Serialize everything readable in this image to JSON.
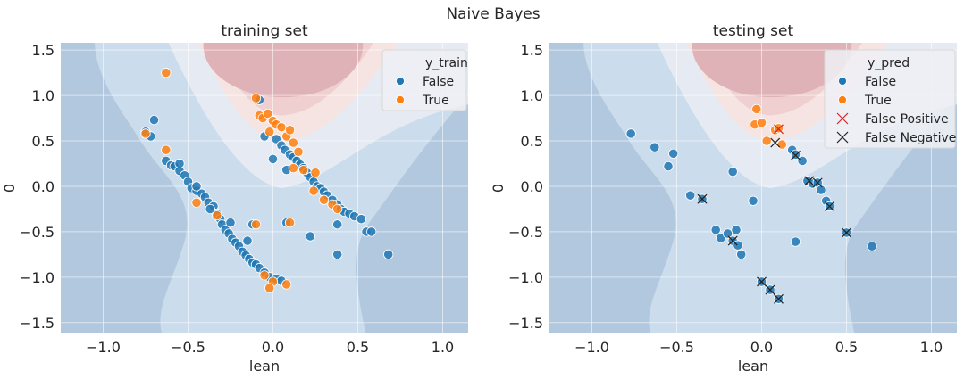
{
  "figure_title": "Naive Bayes",
  "colors": {
    "false_point": "#1f77b4",
    "true_point": "#ff7f0e",
    "false_positive_marker": "#d62728",
    "false_negative_marker": "#222222",
    "region_low": "#b2c8df",
    "region_mid": "#cbdcec",
    "region_neutral": "#e6ebf3",
    "region_warm": "#f5e4e1",
    "region_pink": "#efcfcf",
    "region_high": "#dfb2b7"
  },
  "chart_data": [
    {
      "type": "scatter",
      "title": "training set",
      "xlabel": "lean",
      "ylabel": "0",
      "xlim": [
        -1.25,
        1.15
      ],
      "ylim": [
        -1.62,
        1.58
      ],
      "xticks": [
        "−1.0",
        "−0.5",
        "0.0",
        "0.5",
        "1.0"
      ],
      "xtick_values": [
        -1.0,
        -0.5,
        0.0,
        0.5,
        1.0
      ],
      "yticks": [
        "1.5",
        "1.0",
        "0.5",
        "0.0",
        "−0.5",
        "−1.0",
        "−1.5"
      ],
      "ytick_values": [
        1.5,
        1.0,
        0.5,
        0.0,
        -0.5,
        -1.0,
        -1.5
      ],
      "grid": true,
      "background": "decision-boundary contours",
      "legend": {
        "title": "y_train",
        "placement": "top-right",
        "entries": [
          {
            "label": "False",
            "marker": "circle",
            "color": "#1f77b4"
          },
          {
            "label": "True",
            "marker": "circle",
            "color": "#ff7f0e"
          }
        ]
      },
      "series": [
        {
          "name": "False",
          "points": [
            [
              -0.75,
              0.6
            ],
            [
              -0.72,
              0.55
            ],
            [
              -0.7,
              0.73
            ],
            [
              -0.63,
              0.28
            ],
            [
              -0.6,
              0.23
            ],
            [
              -0.58,
              0.22
            ],
            [
              -0.55,
              0.17
            ],
            [
              -0.52,
              0.12
            ],
            [
              -0.5,
              0.05
            ],
            [
              -0.48,
              -0.02
            ],
            [
              -0.45,
              -0.05
            ],
            [
              -0.42,
              -0.08
            ],
            [
              -0.4,
              -0.12
            ],
            [
              -0.38,
              -0.18
            ],
            [
              -0.35,
              -0.22
            ],
            [
              -0.33,
              -0.3
            ],
            [
              -0.31,
              -0.36
            ],
            [
              -0.3,
              -0.42
            ],
            [
              -0.28,
              -0.48
            ],
            [
              -0.26,
              -0.52
            ],
            [
              -0.24,
              -0.58
            ],
            [
              -0.22,
              -0.62
            ],
            [
              -0.2,
              -0.66
            ],
            [
              -0.18,
              -0.72
            ],
            [
              -0.16,
              -0.76
            ],
            [
              -0.14,
              -0.8
            ],
            [
              -0.12,
              -0.84
            ],
            [
              -0.1,
              -0.86
            ],
            [
              -0.08,
              -0.9
            ],
            [
              -0.05,
              -0.95
            ],
            [
              -0.02,
              -1.0
            ],
            [
              0.02,
              -1.02
            ],
            [
              0.05,
              -1.04
            ],
            [
              -0.55,
              0.25
            ],
            [
              -0.45,
              0.0
            ],
            [
              -0.37,
              -0.25
            ],
            [
              -0.25,
              -0.4
            ],
            [
              -0.15,
              -0.6
            ],
            [
              -0.05,
              0.55
            ],
            [
              0.0,
              0.3
            ],
            [
              0.02,
              0.52
            ],
            [
              0.05,
              0.45
            ],
            [
              0.07,
              0.4
            ],
            [
              0.1,
              0.35
            ],
            [
              0.12,
              0.32
            ],
            [
              0.14,
              0.28
            ],
            [
              0.16,
              0.24
            ],
            [
              0.18,
              0.2
            ],
            [
              0.2,
              0.15
            ],
            [
              0.22,
              0.1
            ],
            [
              0.24,
              0.05
            ],
            [
              0.26,
              0.0
            ],
            [
              0.28,
              -0.02
            ],
            [
              0.3,
              -0.06
            ],
            [
              0.32,
              -0.1
            ],
            [
              0.35,
              -0.15
            ],
            [
              0.38,
              -0.2
            ],
            [
              0.4,
              -0.25
            ],
            [
              0.42,
              -0.28
            ],
            [
              0.45,
              -0.3
            ],
            [
              0.48,
              -0.33
            ],
            [
              0.52,
              -0.36
            ],
            [
              0.55,
              -0.5
            ],
            [
              0.58,
              -0.5
            ],
            [
              0.68,
              -0.75
            ],
            [
              0.38,
              -0.75
            ],
            [
              0.38,
              -0.42
            ],
            [
              0.22,
              -0.55
            ],
            [
              0.08,
              -0.4
            ],
            [
              0.08,
              0.18
            ],
            [
              -0.12,
              -0.42
            ],
            [
              -0.08,
              0.95
            ]
          ]
        },
        {
          "name": "True",
          "points": [
            [
              -0.63,
              1.25
            ],
            [
              -0.75,
              0.58
            ],
            [
              -0.63,
              0.4
            ],
            [
              -0.45,
              -0.18
            ],
            [
              -0.33,
              -0.32
            ],
            [
              -0.1,
              0.97
            ],
            [
              -0.08,
              0.78
            ],
            [
              -0.06,
              0.75
            ],
            [
              -0.03,
              0.8
            ],
            [
              0.0,
              0.72
            ],
            [
              0.02,
              0.68
            ],
            [
              0.05,
              0.65
            ],
            [
              -0.02,
              0.6
            ],
            [
              0.08,
              0.55
            ],
            [
              0.12,
              0.48
            ],
            [
              0.15,
              0.38
            ],
            [
              0.12,
              0.2
            ],
            [
              0.18,
              0.18
            ],
            [
              0.25,
              0.15
            ],
            [
              0.24,
              -0.05
            ],
            [
              0.3,
              -0.15
            ],
            [
              0.35,
              -0.2
            ],
            [
              0.38,
              -0.25
            ],
            [
              0.1,
              -0.4
            ],
            [
              -0.1,
              -0.42
            ],
            [
              -0.05,
              -0.98
            ],
            [
              0.0,
              -1.05
            ],
            [
              -0.02,
              -1.12
            ],
            [
              0.08,
              -1.08
            ],
            [
              0.1,
              0.62
            ]
          ]
        }
      ]
    },
    {
      "type": "scatter",
      "title": "testing set",
      "xlabel": "lean",
      "ylabel": "0",
      "xlim": [
        -1.25,
        1.15
      ],
      "ylim": [
        -1.62,
        1.58
      ],
      "xticks": [
        "−1.0",
        "−0.5",
        "0.0",
        "0.5",
        "1.0"
      ],
      "xtick_values": [
        -1.0,
        -0.5,
        0.0,
        0.5,
        1.0
      ],
      "yticks": [
        "1.5",
        "1.0",
        "0.5",
        "0.0",
        "−0.5",
        "−1.0",
        "−1.5"
      ],
      "ytick_values": [
        1.5,
        1.0,
        0.5,
        0.0,
        -0.5,
        -1.0,
        -1.5
      ],
      "grid": true,
      "background": "decision-boundary contours",
      "legend": {
        "title": "y_pred",
        "placement": "top-right",
        "entries": [
          {
            "label": "False",
            "marker": "circle",
            "color": "#1f77b4"
          },
          {
            "label": "True",
            "marker": "circle",
            "color": "#ff7f0e"
          },
          {
            "label": "False Positive",
            "marker": "x",
            "color": "#d62728"
          },
          {
            "label": "False Negative",
            "marker": "x",
            "color": "#222222"
          }
        ]
      },
      "series": [
        {
          "name": "False",
          "points": [
            [
              -0.77,
              0.58
            ],
            [
              -0.63,
              0.43
            ],
            [
              -0.55,
              0.22
            ],
            [
              -0.52,
              0.36
            ],
            [
              -0.42,
              -0.1
            ],
            [
              -0.35,
              -0.14
            ],
            [
              -0.17,
              0.16
            ],
            [
              -0.05,
              -0.16
            ],
            [
              -0.27,
              -0.48
            ],
            [
              -0.24,
              -0.57
            ],
            [
              -0.2,
              -0.52
            ],
            [
              -0.17,
              -0.6
            ],
            [
              -0.15,
              -0.48
            ],
            [
              -0.14,
              -0.65
            ],
            [
              -0.12,
              -0.75
            ],
            [
              0.0,
              -1.05
            ],
            [
              0.05,
              -1.14
            ],
            [
              0.1,
              -1.24
            ],
            [
              0.18,
              0.4
            ],
            [
              0.2,
              0.35
            ],
            [
              0.24,
              0.28
            ],
            [
              0.27,
              0.06
            ],
            [
              0.3,
              0.03
            ],
            [
              0.33,
              0.04
            ],
            [
              0.35,
              -0.04
            ],
            [
              0.38,
              -0.16
            ],
            [
              0.4,
              -0.22
            ],
            [
              0.2,
              -0.61
            ],
            [
              0.5,
              -0.51
            ],
            [
              0.65,
              -0.66
            ]
          ]
        },
        {
          "name": "True",
          "points": [
            [
              -0.03,
              0.85
            ],
            [
              -0.04,
              0.68
            ],
            [
              0.0,
              0.7
            ],
            [
              0.03,
              0.5
            ],
            [
              0.08,
              0.62
            ],
            [
              0.1,
              0.64
            ],
            [
              0.12,
              0.46
            ]
          ]
        },
        {
          "name": "False Positive",
          "points": [
            [
              0.1,
              0.63
            ]
          ]
        },
        {
          "name": "False Negative",
          "points": [
            [
              0.08,
              0.48
            ],
            [
              0.2,
              0.34
            ],
            [
              0.28,
              0.06
            ],
            [
              0.33,
              0.04
            ],
            [
              0.4,
              -0.22
            ],
            [
              -0.35,
              -0.14
            ],
            [
              -0.17,
              -0.6
            ],
            [
              0.0,
              -1.05
            ],
            [
              0.05,
              -1.14
            ],
            [
              0.1,
              -1.24
            ],
            [
              0.5,
              -0.51
            ]
          ]
        }
      ]
    }
  ]
}
